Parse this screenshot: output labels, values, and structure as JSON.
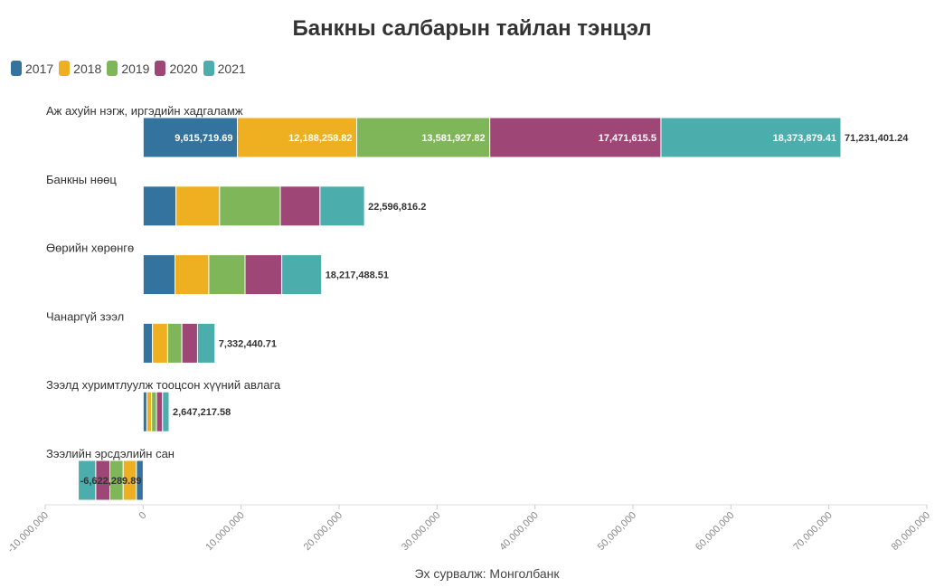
{
  "chart_data": {
    "type": "bar",
    "orientation": "horizontal",
    "stacked": true,
    "title": "Банкны салбарын тайлан тэнцэл",
    "source": "Эх сурвалж: Монголбанк",
    "categories": [
      "Аж ахуйн нэгж, иргэдийн хадгаламж",
      "Банкны нөөц",
      "Өөрийн хөрөнгө",
      "Чанаргүй зээл",
      "Зээлд хуримтлуулж тооцсон хүүний авлага",
      "Зээлийн эрсдэлийн сан"
    ],
    "totals": [
      71231401.24,
      22596816.2,
      18217488.51,
      7332440.71,
      2647217.58,
      -6622289.89
    ],
    "total_labels": [
      "71,231,401.24",
      "22,596,816.2",
      "18,217,488.51",
      "7,332,440.71",
      "2,647,217.58",
      "-6,622,289.89"
    ],
    "series": [
      {
        "name": "2017",
        "color": "#33739e",
        "values": [
          9615719.69,
          3350000,
          3250000,
          950000,
          380000,
          -700000
        ],
        "value_labels": [
          "9,615,719.69",
          "",
          "",
          "",
          "",
          ""
        ]
      },
      {
        "name": "2018",
        "color": "#eeb020",
        "values": [
          12188258.82,
          4450000,
          3450000,
          1550000,
          480000,
          -1350000
        ],
        "value_labels": [
          "12,188,258.82",
          "",
          "",
          "",
          "",
          ""
        ]
      },
      {
        "name": "2019",
        "color": "#80b65a",
        "values": [
          13581927.82,
          6200000,
          3700000,
          1450000,
          500000,
          -1350000
        ],
        "value_labels": [
          "13,581,927.82",
          "",
          "",
          "",
          "",
          ""
        ]
      },
      {
        "name": "2020",
        "color": "#9e4776",
        "values": [
          17471615.5,
          4050000,
          3750000,
          1600000,
          620000,
          -1450000
        ],
        "value_labels": [
          "17,471,615.5",
          "",
          "",
          "",
          "",
          ""
        ]
      },
      {
        "name": "2021",
        "color": "#4cadad",
        "values": [
          18373879.41,
          4546816.2,
          4067488.51,
          1782440.71,
          667217.58,
          -1772289.89
        ],
        "value_labels": [
          "18,373,879.41",
          "",
          "",
          "",
          "",
          ""
        ]
      }
    ],
    "xlim": [
      -10000000,
      80000000
    ],
    "xticks": [
      -10000000,
      0,
      10000000,
      20000000,
      30000000,
      40000000,
      50000000,
      60000000,
      70000000,
      80000000
    ],
    "xtick_labels": [
      "-10,000,000",
      "0",
      "10,000,000",
      "20,000,000",
      "30,000,000",
      "40,000,000",
      "50,000,000",
      "60,000,000",
      "70,000,000",
      "80,000,000"
    ],
    "legend_position": "top-left",
    "grid": false
  }
}
